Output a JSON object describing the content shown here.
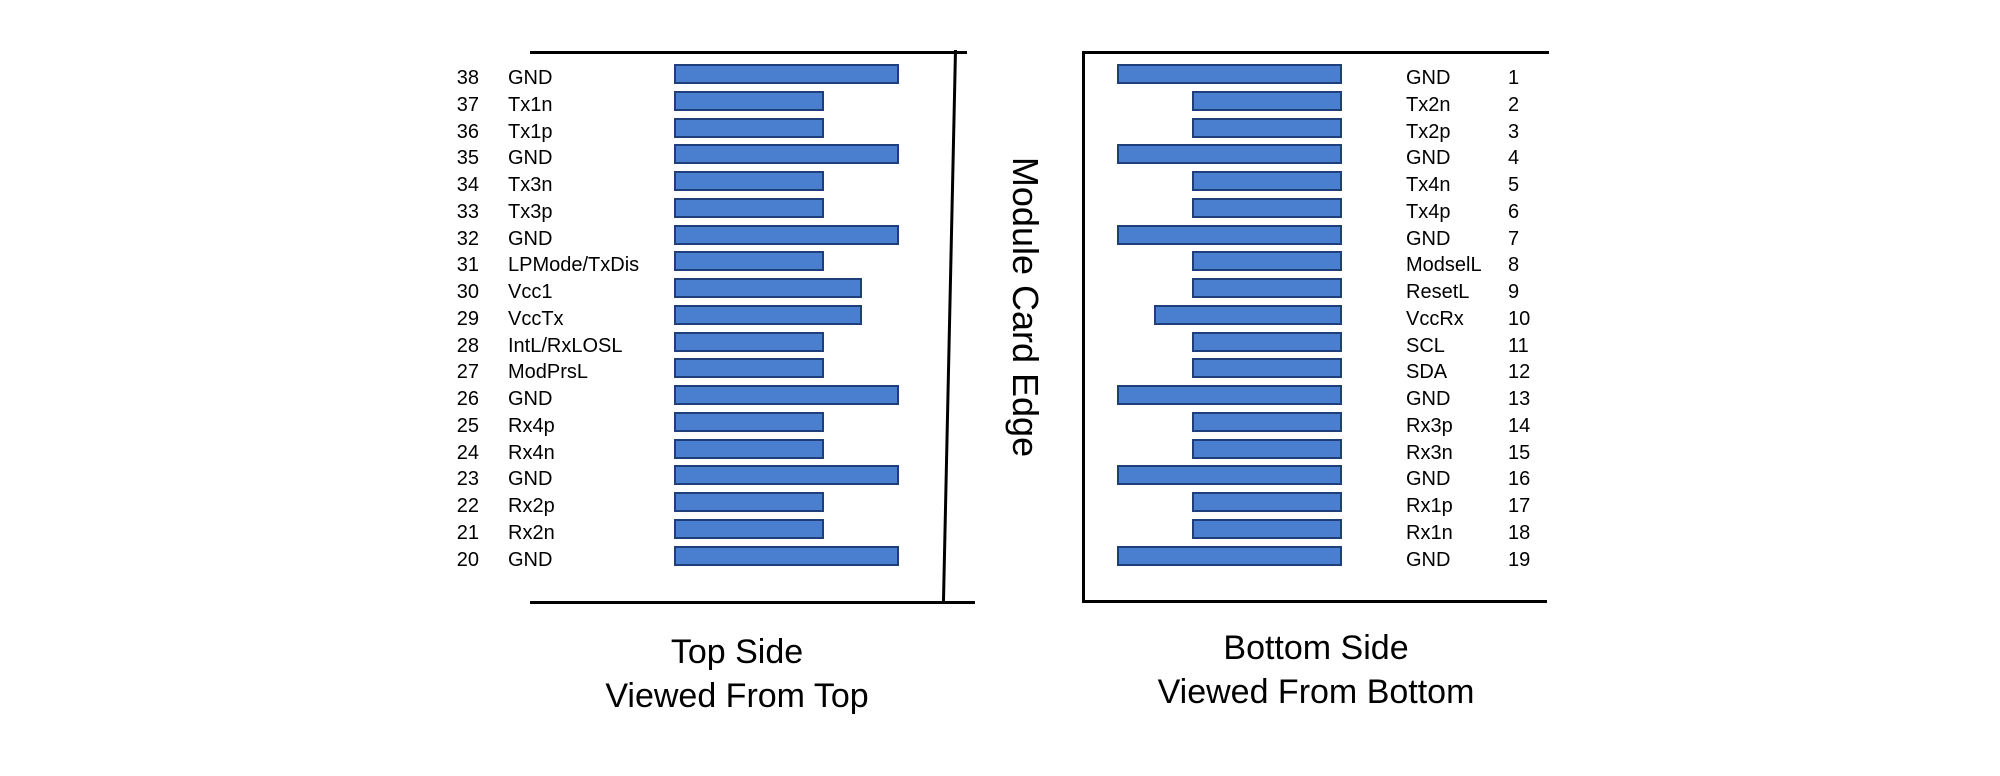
{
  "edge_title": "Module Card Edge",
  "top_side": {
    "caption_line1": "Top Side",
    "caption_line2": "Viewed From Top",
    "pins": [
      {
        "num": "38",
        "label": "GND"
      },
      {
        "num": "37",
        "label": "Tx1n"
      },
      {
        "num": "36",
        "label": "Tx1p"
      },
      {
        "num": "35",
        "label": "GND"
      },
      {
        "num": "34",
        "label": "Tx3n"
      },
      {
        "num": "33",
        "label": "Tx3p"
      },
      {
        "num": "32",
        "label": "GND"
      },
      {
        "num": "31",
        "label": "LPMode/TxDis"
      },
      {
        "num": "30",
        "label": "Vcc1"
      },
      {
        "num": "29",
        "label": "VccTx"
      },
      {
        "num": "28",
        "label": "IntL/RxLOSL"
      },
      {
        "num": "27",
        "label": "ModPrsL"
      },
      {
        "num": "26",
        "label": "GND"
      },
      {
        "num": "25",
        "label": "Rx4p"
      },
      {
        "num": "24",
        "label": "Rx4n"
      },
      {
        "num": "23",
        "label": "GND"
      },
      {
        "num": "22",
        "label": "Rx2p"
      },
      {
        "num": "21",
        "label": "Rx2n"
      },
      {
        "num": "20",
        "label": "GND"
      }
    ]
  },
  "bottom_side": {
    "caption_line1": "Bottom Side",
    "caption_line2": "Viewed From Bottom",
    "pins": [
      {
        "num": "1",
        "label": "GND"
      },
      {
        "num": "2",
        "label": "Tx2n"
      },
      {
        "num": "3",
        "label": "Tx2p"
      },
      {
        "num": "4",
        "label": "GND"
      },
      {
        "num": "5",
        "label": "Tx4n"
      },
      {
        "num": "6",
        "label": "Tx4p"
      },
      {
        "num": "7",
        "label": "GND"
      },
      {
        "num": "8",
        "label": "ModselL"
      },
      {
        "num": "9",
        "label": "ResetL"
      },
      {
        "num": "10",
        "label": "VccRx"
      },
      {
        "num": "11",
        "label": "SCL"
      },
      {
        "num": "12",
        "label": "SDA"
      },
      {
        "num": "13",
        "label": "GND"
      },
      {
        "num": "14",
        "label": "Rx3p"
      },
      {
        "num": "15",
        "label": "Rx3n"
      },
      {
        "num": "16",
        "label": "GND"
      },
      {
        "num": "17",
        "label": "Rx1p"
      },
      {
        "num": "18",
        "label": "Rx1n"
      },
      {
        "num": "19",
        "label": "GND"
      }
    ]
  },
  "colors": {
    "pad_fill": "#4a7fd0",
    "pad_border": "#1f3f7a",
    "outline": "#000000"
  }
}
